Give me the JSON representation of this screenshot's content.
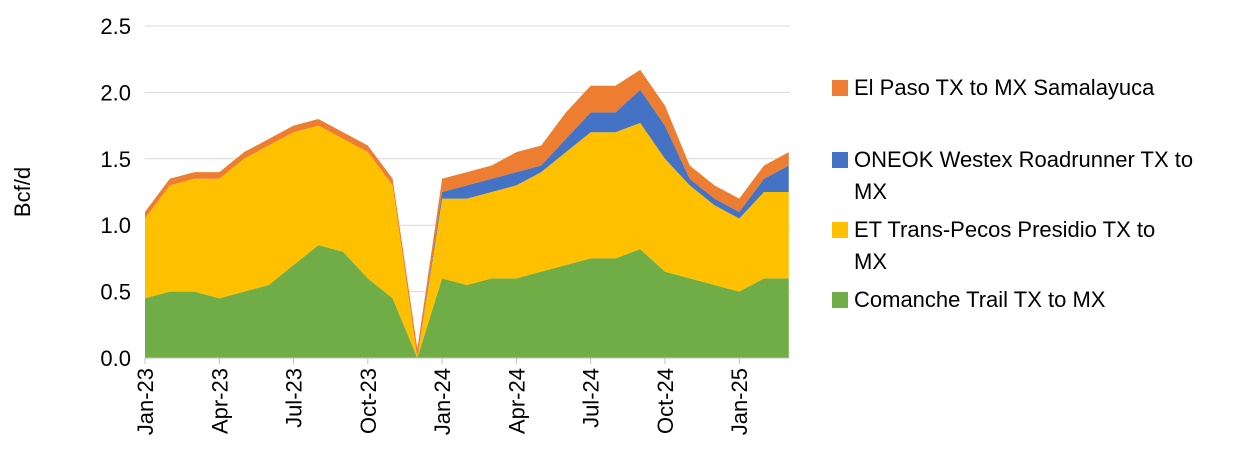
{
  "chart_data": {
    "type": "stacked_area",
    "y_label": "Bcf/d",
    "categories": [
      "Jan-23",
      null,
      null,
      "Apr-23",
      null,
      null,
      "Jul-23",
      null,
      null,
      "Oct-23",
      null,
      null,
      "Jan-24",
      null,
      null,
      "Apr-24",
      null,
      null,
      "Jul-24",
      null,
      null,
      "Oct-24",
      null,
      null,
      "Jan-25",
      null,
      null
    ],
    "series": [
      {
        "name": "El Paso TX to MX Samalayuca",
        "color": "#ed7d31",
        "values": [
          0.05,
          0.05,
          0.05,
          0.05,
          0.05,
          0.05,
          0.05,
          0.05,
          0.05,
          0.05,
          0.05,
          0.07,
          0.1,
          0.1,
          0.1,
          0.15,
          0.15,
          0.2,
          0.2,
          0.2,
          0.15,
          0.15,
          0.1,
          0.1,
          0.1,
          0.1,
          0.1
        ]
      },
      {
        "name": "ONEOK Westex Roadrunner TX to MX",
        "color": "#4472c4",
        "values": [
          0,
          0,
          0,
          0,
          0,
          0,
          0,
          0,
          0,
          0,
          0,
          0,
          0.05,
          0.1,
          0.1,
          0.1,
          0.05,
          0.1,
          0.15,
          0.15,
          0.25,
          0.25,
          0.05,
          0.05,
          0.05,
          0.1,
          0.2
        ]
      },
      {
        "name": "ET Trans-Pecos Presidio TX to MX",
        "color": "#ffc000",
        "values": [
          0.6,
          0.8,
          0.85,
          0.9,
          1.0,
          1.05,
          1.0,
          0.9,
          0.85,
          0.95,
          0.85,
          0,
          0.6,
          0.65,
          0.65,
          0.7,
          0.75,
          0.85,
          0.95,
          0.95,
          0.95,
          0.85,
          0.7,
          0.6,
          0.55,
          0.65,
          0.65
        ]
      },
      {
        "name": "Comanche Trail TX to MX",
        "color": "#70ad47",
        "values": [
          0.45,
          0.5,
          0.5,
          0.45,
          0.5,
          0.55,
          0.7,
          0.85,
          0.8,
          0.6,
          0.45,
          0,
          0.6,
          0.55,
          0.6,
          0.6,
          0.65,
          0.7,
          0.75,
          0.75,
          0.82,
          0.65,
          0.6,
          0.55,
          0.5,
          0.6,
          0.6
        ]
      }
    ],
    "ylim": [
      0,
      2.5
    ],
    "yticks": [
      {
        "value": 0,
        "label": "0.0"
      },
      0.5,
      {
        "value": 1,
        "label": "1.0"
      },
      1.5,
      {
        "value": 2,
        "label": "2.0"
      },
      2.5
    ],
    "grid": true
  }
}
